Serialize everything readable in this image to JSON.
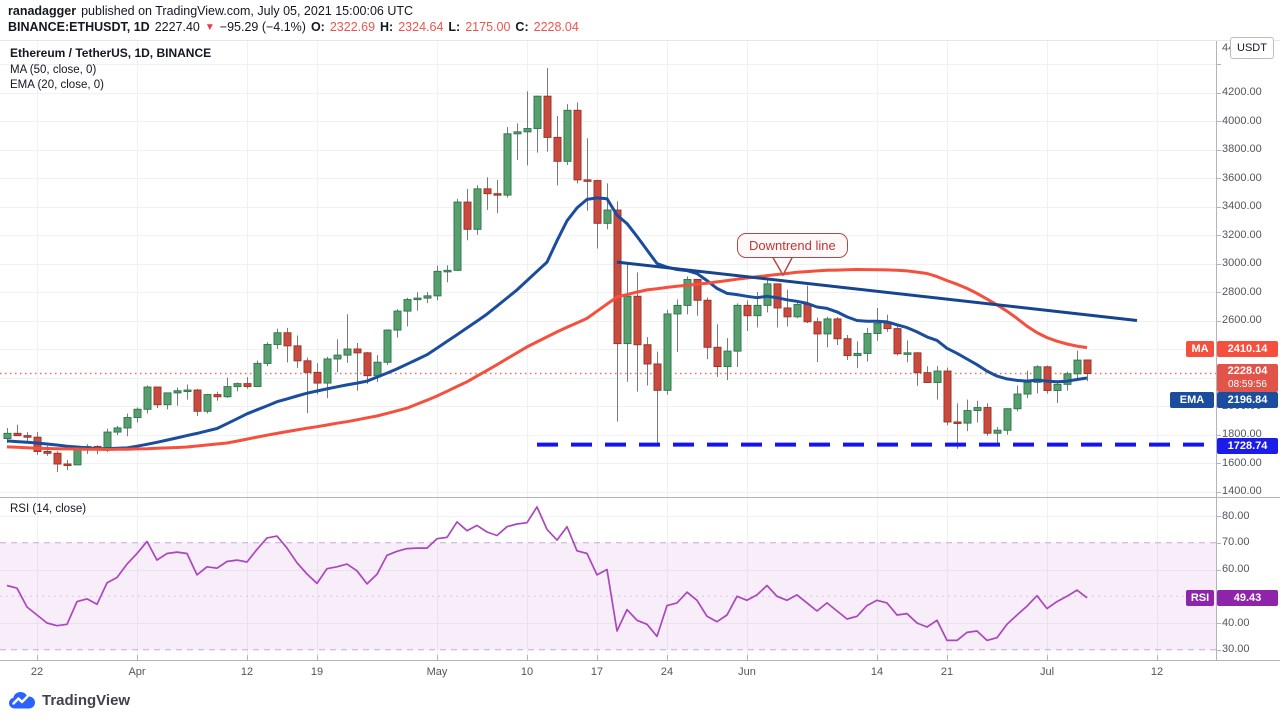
{
  "header": {
    "byline_user": "ranadagger",
    "byline_rest": "published on TradingView.com, July 05, 2021 15:00:06 UTC",
    "symbol": "BINANCE:ETHUSDT, 1D",
    "last_price": "2227.40",
    "direction_icon": "triangle-down",
    "change": "−95.29 (−4.1%)",
    "o_label": "O:",
    "o_value": "2322.69",
    "h_label": "H:",
    "h_value": "2324.64",
    "l_label": "L:",
    "l_value": "2175.00",
    "c_label": "C:",
    "c_value": "2228.04"
  },
  "legend": {
    "title": "Ethereum / TetherUS, 1D, BINANCE",
    "ma_row": "MA (50, close, 0)",
    "ema_row": "EMA (20, close, 0)",
    "rsi_row": "RSI (14, close)"
  },
  "axis": {
    "currency_button": "USDT",
    "price_ticks": [
      "4400.00",
      "4200.00",
      "4000.00",
      "3800.00",
      "3600.00",
      "3400.00",
      "3200.00",
      "3000.00",
      "2800.00",
      "2600.00",
      "2400.00",
      "2200.00",
      "2000.00",
      "1800.00",
      "1600.00",
      "1400.00"
    ],
    "rsi_ticks": [
      "80.00",
      "70.00",
      "60.00",
      "50.00",
      "40.00",
      "30.00"
    ],
    "time_labels": [
      {
        "label": "22",
        "day": 3
      },
      {
        "label": "Apr",
        "day": 13
      },
      {
        "label": "12",
        "day": 24
      },
      {
        "label": "19",
        "day": 31
      },
      {
        "label": "May",
        "day": 43
      },
      {
        "label": "10",
        "day": 52
      },
      {
        "label": "17",
        "day": 59
      },
      {
        "label": "24",
        "day": 66
      },
      {
        "label": "Jun",
        "day": 74
      },
      {
        "label": "14",
        "day": 87
      },
      {
        "label": "21",
        "day": 94
      },
      {
        "label": "Jul",
        "day": 104
      },
      {
        "label": "12",
        "day": 115
      }
    ]
  },
  "badges": {
    "ma_label": "MA",
    "ma_value": "2410.14",
    "price_value": "2228.04",
    "countdown": "08:59:56",
    "ema_label": "EMA",
    "ema_value": "2196.84",
    "support_value": "1728.74",
    "rsi_label": "RSI",
    "rsi_value": "49.43"
  },
  "annotation": {
    "callout_text": "Downtrend line"
  },
  "watermark": {
    "text": "TradingView"
  },
  "colors": {
    "up_fill": "#57A06D",
    "up_border": "#2F7A50",
    "down_fill": "#C94B40",
    "down_border": "#A23427",
    "wick": "#7A7A7A",
    "ma": "#F5503E",
    "ema": "#1A4D9E",
    "trend": "#16448F",
    "support": "#1414F0",
    "support_badge": "#1C1CE8",
    "price_line": "#EF6A5A",
    "price_badge": "#E0544A",
    "ma_badge": "#F5503E",
    "ema_badge": "#1A4D9E",
    "rsi_line": "#AB47BC",
    "rsi_badge": "#8E24AA",
    "rsi_band_edge": "#CBA6DF",
    "grid": "#F0F1F3",
    "border": "#B2B5BE",
    "logo_blue": "#2962FF"
  },
  "chart_data": {
    "type": "candlestick",
    "symbol": "ETHUSDT",
    "exchange": "BINANCE",
    "interval": "1D",
    "start_date": "2021-03-19",
    "ylim_price": [
      1400,
      4400
    ],
    "rsi_band": [
      30,
      70
    ],
    "rsi_mid": 50,
    "price_line": 2228.04,
    "support_line": {
      "price": 1728.74,
      "from_day": 53
    },
    "trendline": {
      "from_day": 61,
      "from_price": 3010,
      "to_day": 113,
      "to_price": 2600
    },
    "candles": [
      [
        1772,
        1846,
        1741,
        1808
      ],
      [
        1808,
        1868,
        1789,
        1792
      ],
      [
        1792,
        1817,
        1745,
        1781
      ],
      [
        1781,
        1817,
        1657,
        1681
      ],
      [
        1681,
        1721,
        1650,
        1668
      ],
      [
        1668,
        1682,
        1536,
        1593
      ],
      [
        1593,
        1622,
        1550,
        1587
      ],
      [
        1587,
        1705,
        1585,
        1703
      ],
      [
        1703,
        1732,
        1664,
        1716
      ],
      [
        1716,
        1725,
        1661,
        1691
      ],
      [
        1691,
        1841,
        1677,
        1817
      ],
      [
        1817,
        1860,
        1796,
        1846
      ],
      [
        1846,
        1947,
        1788,
        1919
      ],
      [
        1919,
        1990,
        1884,
        1977
      ],
      [
        1977,
        2145,
        1947,
        2133
      ],
      [
        2133,
        2137,
        1986,
        2009
      ],
      [
        2009,
        2093,
        1976,
        2092
      ],
      [
        2092,
        2129,
        2002,
        2107
      ],
      [
        2107,
        2151,
        2045,
        2112
      ],
      [
        2112,
        2119,
        1930,
        1963
      ],
      [
        1963,
        2086,
        1947,
        2080
      ],
      [
        2080,
        2100,
        2037,
        2065
      ],
      [
        2065,
        2200,
        2057,
        2136
      ],
      [
        2136,
        2165,
        2103,
        2157
      ],
      [
        2157,
        2203,
        2121,
        2137
      ],
      [
        2137,
        2318,
        2135,
        2299
      ],
      [
        2299,
        2447,
        2281,
        2432
      ],
      [
        2432,
        2543,
        2400,
        2514
      ],
      [
        2514,
        2548,
        2305,
        2422
      ],
      [
        2422,
        2495,
        2266,
        2317
      ],
      [
        2317,
        2340,
        1950,
        2236
      ],
      [
        2236,
        2300,
        2082,
        2161
      ],
      [
        2161,
        2346,
        2055,
        2330
      ],
      [
        2330,
        2468,
        2238,
        2357
      ],
      [
        2357,
        2644,
        2303,
        2400
      ],
      [
        2400,
        2442,
        2107,
        2373
      ],
      [
        2373,
        2380,
        2155,
        2213
      ],
      [
        2213,
        2357,
        2168,
        2307
      ],
      [
        2307,
        2538,
        2288,
        2533
      ],
      [
        2533,
        2680,
        2480,
        2666
      ],
      [
        2666,
        2760,
        2559,
        2747
      ],
      [
        2747,
        2798,
        2668,
        2757
      ],
      [
        2757,
        2800,
        2723,
        2773
      ],
      [
        2773,
        2985,
        2741,
        2945
      ],
      [
        2945,
        2988,
        2868,
        2952
      ],
      [
        2952,
        3454,
        2949,
        3431
      ],
      [
        3431,
        3524,
        3163,
        3240
      ],
      [
        3240,
        3549,
        3201,
        3524
      ],
      [
        3524,
        3605,
        3376,
        3490
      ],
      [
        3490,
        3587,
        3353,
        3480
      ],
      [
        3480,
        3958,
        3462,
        3910
      ],
      [
        3910,
        3983,
        3726,
        3924
      ],
      [
        3924,
        4208,
        3689,
        3947
      ],
      [
        3947,
        4178,
        3778,
        4174
      ],
      [
        4174,
        4372,
        3785,
        3885
      ],
      [
        3885,
        4035,
        3547,
        3717
      ],
      [
        3717,
        4118,
        3690,
        4075
      ],
      [
        4075,
        4130,
        3561,
        3587
      ],
      [
        3587,
        3879,
        3370,
        3582
      ],
      [
        3582,
        3588,
        3105,
        3282
      ],
      [
        3282,
        3562,
        3240,
        3375
      ],
      [
        3375,
        3437,
        1890,
        2438
      ],
      [
        2438,
        2994,
        2170,
        2770
      ],
      [
        2770,
        2938,
        2101,
        2430
      ],
      [
        2430,
        2484,
        2144,
        2295
      ],
      [
        2295,
        2382,
        1728,
        2110
      ],
      [
        2110,
        2675,
        2080,
        2646
      ],
      [
        2646,
        2748,
        2379,
        2706
      ],
      [
        2706,
        2910,
        2643,
        2888
      ],
      [
        2888,
        2889,
        2633,
        2742
      ],
      [
        2742,
        2762,
        2328,
        2412
      ],
      [
        2412,
        2574,
        2204,
        2277
      ],
      [
        2277,
        2476,
        2182,
        2385
      ],
      [
        2385,
        2720,
        2274,
        2706
      ],
      [
        2706,
        2740,
        2526,
        2634
      ],
      [
        2634,
        2800,
        2552,
        2706
      ],
      [
        2706,
        2891,
        2657,
        2857
      ],
      [
        2857,
        2860,
        2551,
        2688
      ],
      [
        2688,
        2817,
        2558,
        2626
      ],
      [
        2626,
        2743,
        2616,
        2712
      ],
      [
        2712,
        2845,
        2581,
        2591
      ],
      [
        2591,
        2620,
        2309,
        2506
      ],
      [
        2506,
        2626,
        2411,
        2611
      ],
      [
        2611,
        2624,
        2428,
        2472
      ],
      [
        2472,
        2498,
        2323,
        2354
      ],
      [
        2354,
        2454,
        2266,
        2369
      ],
      [
        2369,
        2548,
        2311,
        2509
      ],
      [
        2509,
        2688,
        2458,
        2580
      ],
      [
        2580,
        2640,
        2521,
        2543
      ],
      [
        2543,
        2560,
        2354,
        2367
      ],
      [
        2367,
        2460,
        2307,
        2373
      ],
      [
        2373,
        2378,
        2141,
        2234
      ],
      [
        2234,
        2279,
        2162,
        2165
      ],
      [
        2165,
        2280,
        2046,
        2245
      ],
      [
        2245,
        2269,
        1865,
        1888
      ],
      [
        1888,
        2018,
        1700,
        1880
      ],
      [
        1880,
        2045,
        1824,
        1968
      ],
      [
        1968,
        2037,
        1884,
        1989
      ],
      [
        1989,
        2019,
        1791,
        1809
      ],
      [
        1809,
        1852,
        1717,
        1830
      ],
      [
        1830,
        1984,
        1798,
        1981
      ],
      [
        1981,
        2144,
        1962,
        2084
      ],
      [
        2084,
        2247,
        2056,
        2166
      ],
      [
        2166,
        2287,
        2089,
        2275
      ],
      [
        2275,
        2283,
        2087,
        2109
      ],
      [
        2109,
        2162,
        2021,
        2152
      ],
      [
        2152,
        2240,
        2107,
        2226
      ],
      [
        2226,
        2389,
        2189,
        2322
      ],
      [
        2322.69,
        2324.64,
        2175,
        2228.04
      ]
    ],
    "ma50": [
      1713,
      1710,
      1707,
      1704,
      1702,
      1700,
      1699,
      1698,
      1697,
      1696,
      1695,
      1696,
      1697,
      1699,
      1700,
      1703,
      1706,
      1709,
      1712,
      1719,
      1726,
      1733,
      1740,
      1754,
      1768,
      1782,
      1795,
      1808,
      1820,
      1832,
      1844,
      1855,
      1867,
      1879,
      1890,
      1903,
      1917,
      1930,
      1948,
      1966,
      1985,
      2013,
      2041,
      2070,
      2103,
      2137,
      2170,
      2210,
      2250,
      2290,
      2332,
      2373,
      2415,
      2450,
      2485,
      2520,
      2552,
      2583,
      2615,
      2665,
      2715,
      2765,
      2782,
      2799,
      2815,
      2823,
      2832,
      2840,
      2847,
      2855,
      2862,
      2871,
      2880,
      2890,
      2898,
      2907,
      2915,
      2923,
      2930,
      2938,
      2943,
      2948,
      2952,
      2954,
      2956,
      2958,
      2957,
      2956,
      2955,
      2952,
      2948,
      2940,
      2930,
      2908,
      2880,
      2855,
      2825,
      2790,
      2750,
      2710,
      2665,
      2615,
      2560,
      2515,
      2480,
      2455,
      2435,
      2420,
      2410
    ],
    "ema20": [
      1755,
      1750,
      1745,
      1740,
      1733,
      1726,
      1718,
      1712,
      1706,
      1700,
      1701,
      1703,
      1706,
      1718,
      1731,
      1745,
      1761,
      1776,
      1792,
      1808,
      1825,
      1842,
      1876,
      1910,
      1945,
      1973,
      2001,
      2030,
      2050,
      2070,
      2090,
      2105,
      2120,
      2135,
      2148,
      2161,
      2175,
      2203,
      2231,
      2260,
      2293,
      2326,
      2360,
      2406,
      2453,
      2500,
      2548,
      2596,
      2645,
      2701,
      2758,
      2815,
      2880,
      2945,
      3010,
      3160,
      3300,
      3390,
      3450,
      3460,
      3455,
      3340,
      3280,
      3190,
      3095,
      3000,
      2975,
      2958,
      2950,
      2930,
      2880,
      2825,
      2790,
      2782,
      2770,
      2760,
      2770,
      2760,
      2745,
      2735,
      2720,
      2695,
      2685,
      2660,
      2625,
      2600,
      2595,
      2595,
      2590,
      2570,
      2550,
      2520,
      2485,
      2460,
      2405,
      2370,
      2330,
      2290,
      2245,
      2210,
      2190,
      2180,
      2175,
      2182,
      2175,
      2170,
      2174,
      2186,
      2196.84
    ],
    "rsi14": [
      54,
      53,
      46,
      43,
      40,
      39,
      39.5,
      48,
      49,
      47,
      55,
      57,
      62,
      66,
      70.5,
      63.5,
      66,
      66.5,
      66,
      58,
      61,
      60.5,
      63,
      63.5,
      62.8,
      67.5,
      71.8,
      72.5,
      68,
      62.5,
      58.3,
      54.8,
      60.3,
      61,
      62,
      59.5,
      54.6,
      58.2,
      65.3,
      66.8,
      67.8,
      68,
      68,
      71.5,
      72,
      77.8,
      74.5,
      76.5,
      74,
      72.7,
      76,
      77,
      77.5,
      83.4,
      75,
      71,
      76,
      67,
      66,
      58,
      60,
      37,
      45,
      41,
      39.5,
      35,
      46.5,
      47.5,
      51.5,
      48.5,
      42.5,
      40.5,
      43,
      50,
      48.5,
      50.5,
      54,
      50,
      48.5,
      50.5,
      47.5,
      44.5,
      47.5,
      44.5,
      41.5,
      42.5,
      46.5,
      48.5,
      47.5,
      43,
      43.5,
      40,
      38.5,
      41,
      33.5,
      33.5,
      36.5,
      37,
      33.5,
      34.5,
      39.5,
      43,
      46.3,
      50.2,
      45.4,
      48,
      50,
      52.3,
      49.43
    ]
  }
}
